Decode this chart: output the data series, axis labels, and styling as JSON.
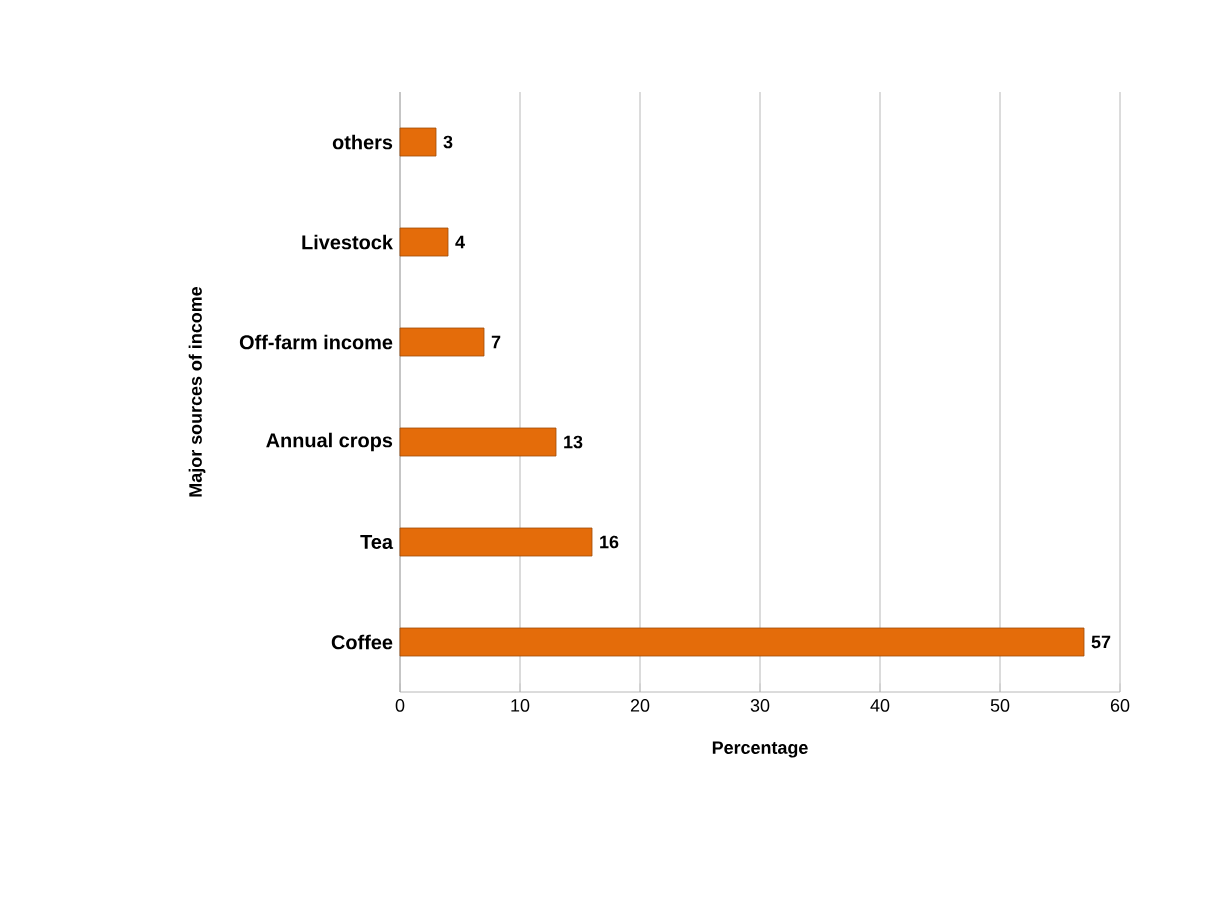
{
  "chart_data": {
    "type": "bar",
    "orientation": "horizontal",
    "xlabel": "Percentage",
    "ylabel": "Major sources of income",
    "categories": [
      "others",
      "Livestock",
      "Off-farm income",
      "Annual crops",
      "Tea",
      "Coffee"
    ],
    "values": [
      3,
      4,
      7,
      13,
      16,
      57
    ],
    "color": "#e46c0a",
    "xlim": [
      0,
      60
    ],
    "xticks": [
      0,
      10,
      20,
      30,
      40,
      50,
      60
    ],
    "grid": "x",
    "data_labels": true
  }
}
